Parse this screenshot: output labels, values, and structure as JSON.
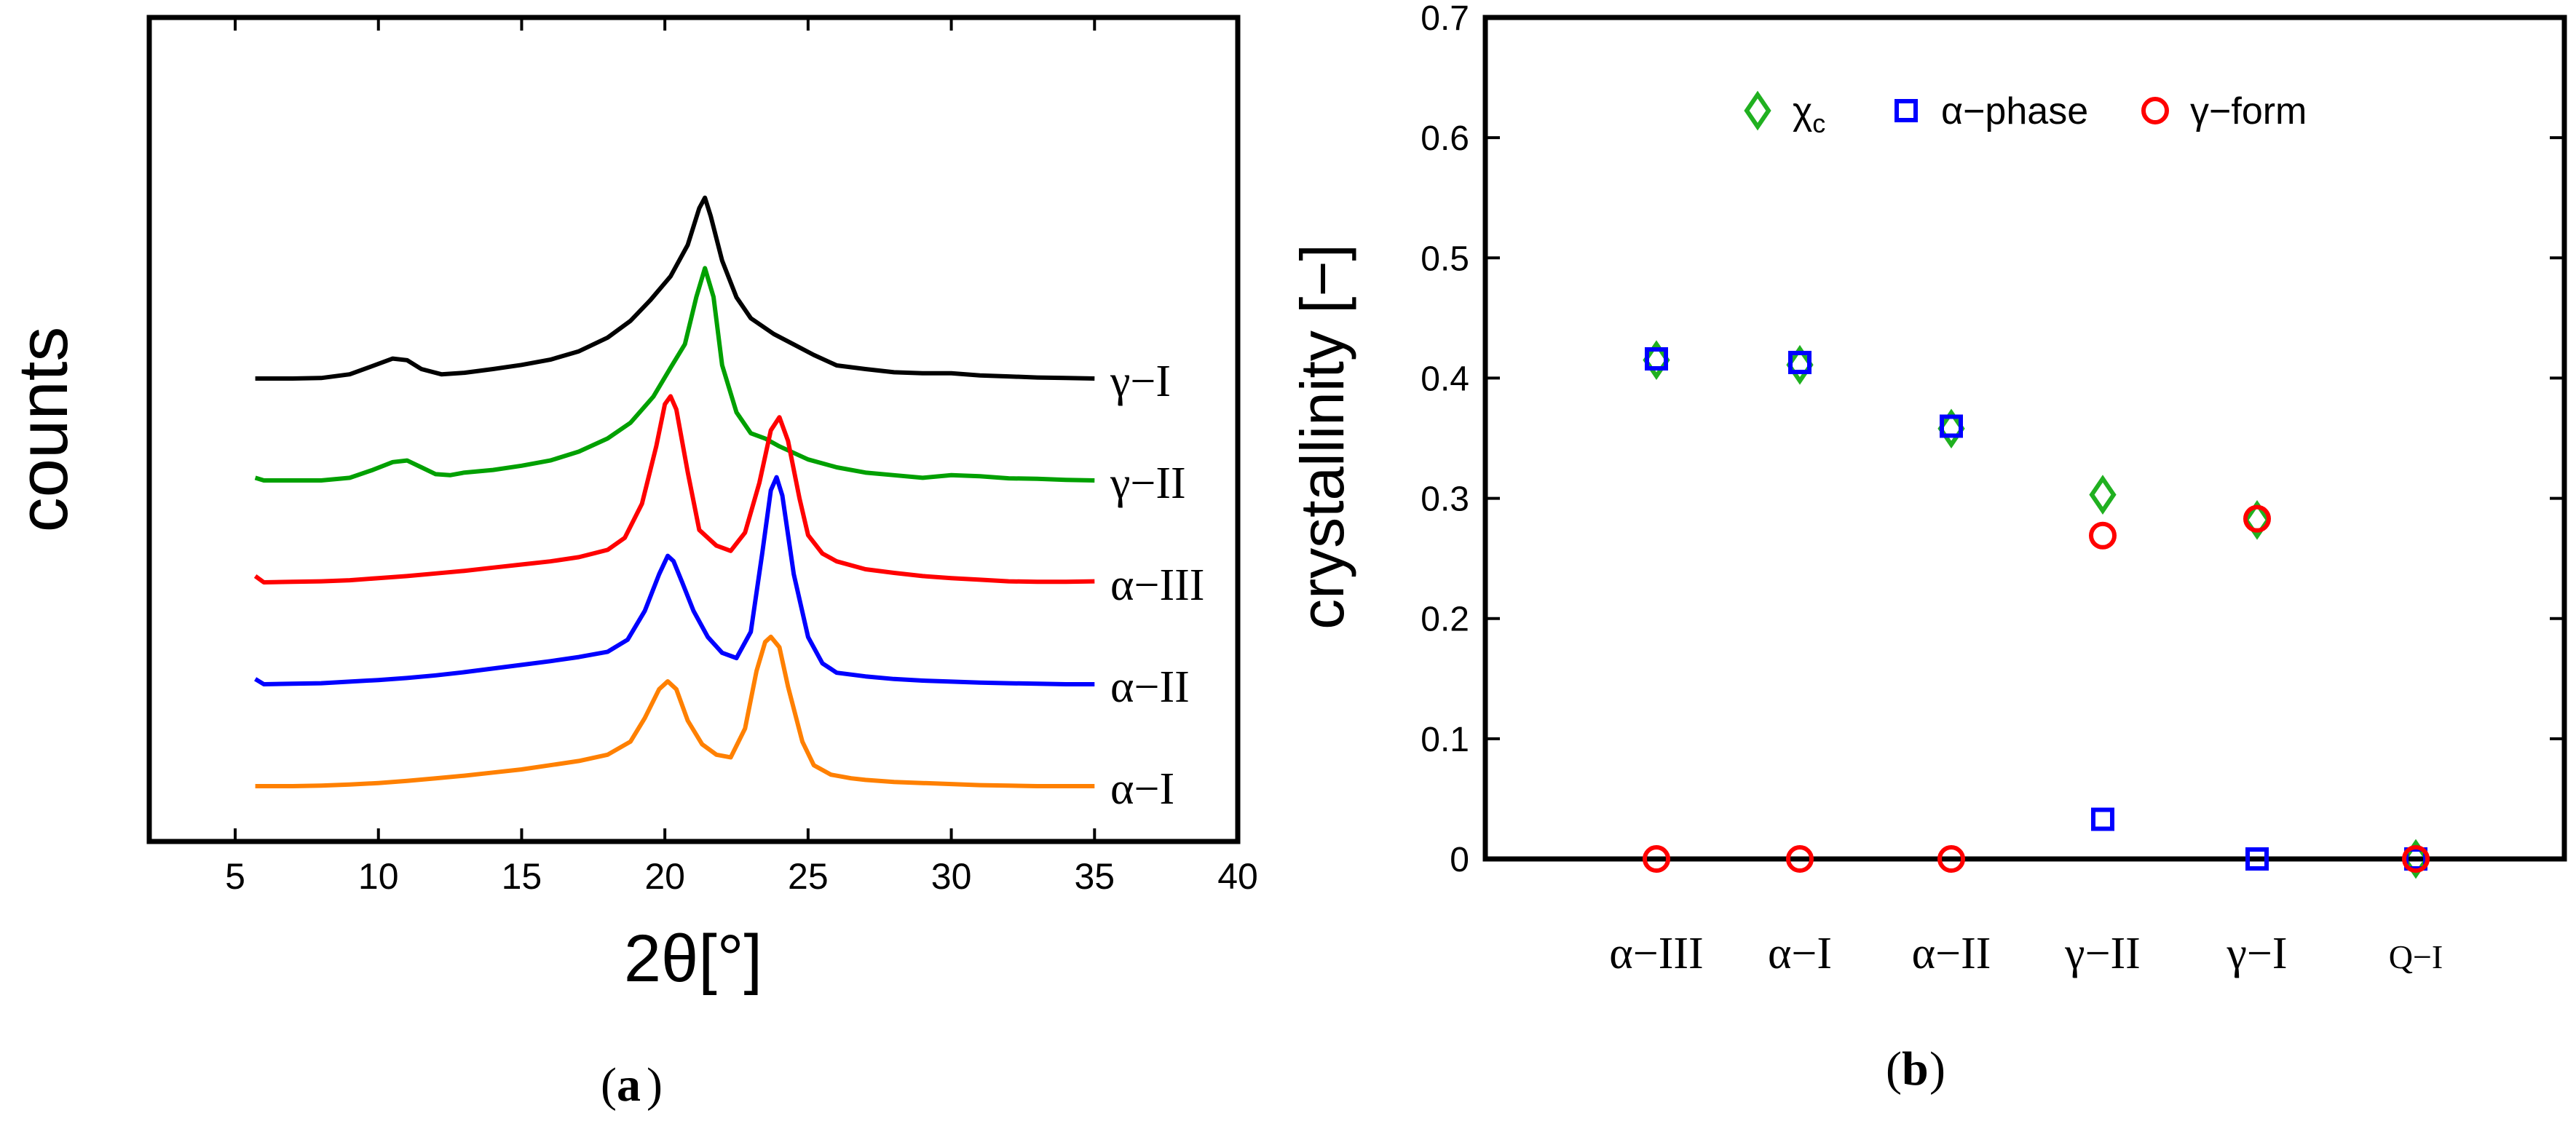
{
  "panel_a": {
    "caption": "a",
    "chart_data": {
      "type": "line",
      "title": "",
      "xlabel": "2θ[°]",
      "ylabel": "counts",
      "xlim": [
        2,
        40
      ],
      "xticks": [
        5,
        10,
        15,
        20,
        25,
        30,
        35,
        40
      ],
      "series": [
        {
          "name": "γ−I",
          "color": "#000000",
          "offset": 4,
          "x": [
            5.7,
            7,
            8,
            9,
            9.7,
            10.5,
            11,
            11.5,
            12.2,
            13,
            14,
            15,
            16,
            17,
            18,
            18.8,
            19.5,
            20.2,
            20.8,
            21.2,
            21.4,
            21.6,
            22,
            22.5,
            23,
            23.8,
            24.5,
            25.2,
            26,
            27,
            28,
            29,
            30,
            31,
            32,
            33,
            34,
            35
          ],
          "y": [
            0,
            0,
            0.01,
            0.08,
            0.22,
            0.38,
            0.35,
            0.18,
            0.08,
            0.11,
            0.18,
            0.26,
            0.36,
            0.52,
            0.78,
            1.1,
            1.5,
            1.95,
            2.55,
            3.25,
            3.45,
            3.1,
            2.25,
            1.55,
            1.15,
            0.85,
            0.65,
            0.45,
            0.25,
            0.18,
            0.12,
            0.1,
            0.1,
            0.06,
            0.04,
            0.02,
            0.01,
            0
          ]
        },
        {
          "name": "γ−II",
          "color": "#00a000",
          "offset": 3,
          "x": [
            5.7,
            6,
            7,
            8,
            9,
            9.8,
            10.5,
            11,
            11.5,
            12,
            12.5,
            13,
            14,
            15,
            16,
            17,
            18,
            18.8,
            19.6,
            20.2,
            20.7,
            21.1,
            21.4,
            21.7,
            22,
            22.5,
            23,
            23.5,
            24,
            25,
            26,
            27,
            28,
            29,
            30,
            31,
            32,
            33,
            34,
            35
          ],
          "y": [
            0.05,
            0,
            0,
            0,
            0.05,
            0.2,
            0.35,
            0.38,
            0.25,
            0.12,
            0.1,
            0.15,
            0.2,
            0.28,
            0.38,
            0.55,
            0.8,
            1.1,
            1.6,
            2.15,
            2.6,
            3.5,
            4.05,
            3.5,
            2.2,
            1.3,
            0.9,
            0.8,
            0.65,
            0.4,
            0.25,
            0.15,
            0.1,
            0.05,
            0.1,
            0.08,
            0.04,
            0.03,
            0.01,
            0
          ]
        },
        {
          "name": "α−III",
          "color": "#ff0000",
          "offset": 2,
          "x": [
            5.7,
            6,
            7,
            8,
            9,
            10,
            11,
            12,
            13,
            14,
            15,
            16,
            17,
            18,
            18.6,
            19.2,
            19.7,
            20,
            20.2,
            20.4,
            20.8,
            21.2,
            21.8,
            22.3,
            22.8,
            23.3,
            23.7,
            24,
            24.3,
            24.7,
            25,
            25.5,
            26,
            27,
            28,
            29,
            30,
            31,
            32,
            33,
            34,
            35
          ],
          "y": [
            0.12,
            0,
            0.01,
            0.02,
            0.04,
            0.08,
            0.12,
            0.17,
            0.22,
            0.28,
            0.34,
            0.4,
            0.48,
            0.62,
            0.85,
            1.5,
            2.6,
            3.4,
            3.55,
            3.3,
            2.1,
            1.0,
            0.7,
            0.6,
            0.95,
            1.9,
            2.9,
            3.15,
            2.7,
            1.6,
            0.9,
            0.55,
            0.4,
            0.25,
            0.18,
            0.12,
            0.08,
            0.05,
            0.02,
            0.01,
            0.01,
            0.02
          ]
        },
        {
          "name": "α−II",
          "color": "#0000ff",
          "offset": 1,
          "x": [
            5.7,
            6,
            7,
            8,
            9,
            10,
            11,
            12,
            13,
            14,
            15,
            16,
            17,
            18,
            18.7,
            19.3,
            19.8,
            20.1,
            20.3,
            20.6,
            21,
            21.5,
            22,
            22.5,
            23,
            23.4,
            23.7,
            23.9,
            24.1,
            24.5,
            25,
            25.5,
            26,
            27,
            28,
            29,
            30,
            31,
            32,
            33,
            34,
            35
          ],
          "y": [
            0.1,
            0,
            0.01,
            0.02,
            0.05,
            0.08,
            0.12,
            0.17,
            0.23,
            0.3,
            0.37,
            0.44,
            0.52,
            0.62,
            0.85,
            1.4,
            2.1,
            2.45,
            2.35,
            1.95,
            1.4,
            0.9,
            0.6,
            0.5,
            1.0,
            2.5,
            3.7,
            3.95,
            3.6,
            2.1,
            0.9,
            0.4,
            0.22,
            0.15,
            0.1,
            0.07,
            0.05,
            0.03,
            0.02,
            0.01,
            0,
            0
          ]
        },
        {
          "name": "α−I",
          "color": "#ff8000",
          "offset": 0,
          "x": [
            5.7,
            7,
            8,
            9,
            10,
            11,
            12,
            13,
            14,
            15,
            16,
            17,
            18,
            18.8,
            19.3,
            19.8,
            20.1,
            20.4,
            20.8,
            21.3,
            21.8,
            22.3,
            22.8,
            23.2,
            23.5,
            23.7,
            24,
            24.3,
            24.8,
            25.2,
            25.8,
            26.5,
            27,
            28,
            29,
            30,
            31,
            32,
            33,
            34,
            35
          ],
          "y": [
            0,
            0,
            0.01,
            0.03,
            0.06,
            0.1,
            0.15,
            0.2,
            0.26,
            0.32,
            0.4,
            0.48,
            0.6,
            0.85,
            1.3,
            1.85,
            2.0,
            1.85,
            1.25,
            0.8,
            0.6,
            0.55,
            1.1,
            2.2,
            2.75,
            2.85,
            2.65,
            1.9,
            0.85,
            0.4,
            0.22,
            0.15,
            0.12,
            0.08,
            0.06,
            0.04,
            0.02,
            0.01,
            0,
            0,
            0
          ]
        }
      ]
    }
  },
  "panel_b": {
    "caption": "b",
    "chart_data": {
      "type": "scatter",
      "title": "",
      "xlabel": "",
      "ylabel": "crystallinity [−]",
      "ylim": [
        0,
        0.7
      ],
      "yticks": [
        "0",
        "0.1",
        "0.2",
        "0.3",
        "0.4",
        "0.5",
        "0.6",
        "0.7"
      ],
      "categories": [
        "α−III",
        "α−I",
        "α−II",
        "γ−II",
        "γ−I",
        "Q−I"
      ],
      "series": [
        {
          "name": "χc",
          "label_main": "χ",
          "label_sub": "c",
          "marker": "diamond",
          "color": "#20b020",
          "values": [
            0.415,
            0.411,
            0.358,
            0.303,
            0.282,
            0.0
          ]
        },
        {
          "name": "α−phase",
          "marker": "square",
          "color": "#0000ff",
          "values": [
            0.416,
            0.413,
            0.36,
            0.033,
            0.0,
            0.0
          ]
        },
        {
          "name": "γ−form",
          "marker": "circle",
          "color": "#ff0000",
          "values": [
            0.0,
            0.0,
            0.0,
            0.269,
            0.283,
            0.0
          ]
        }
      ],
      "legend_position": "top"
    }
  }
}
